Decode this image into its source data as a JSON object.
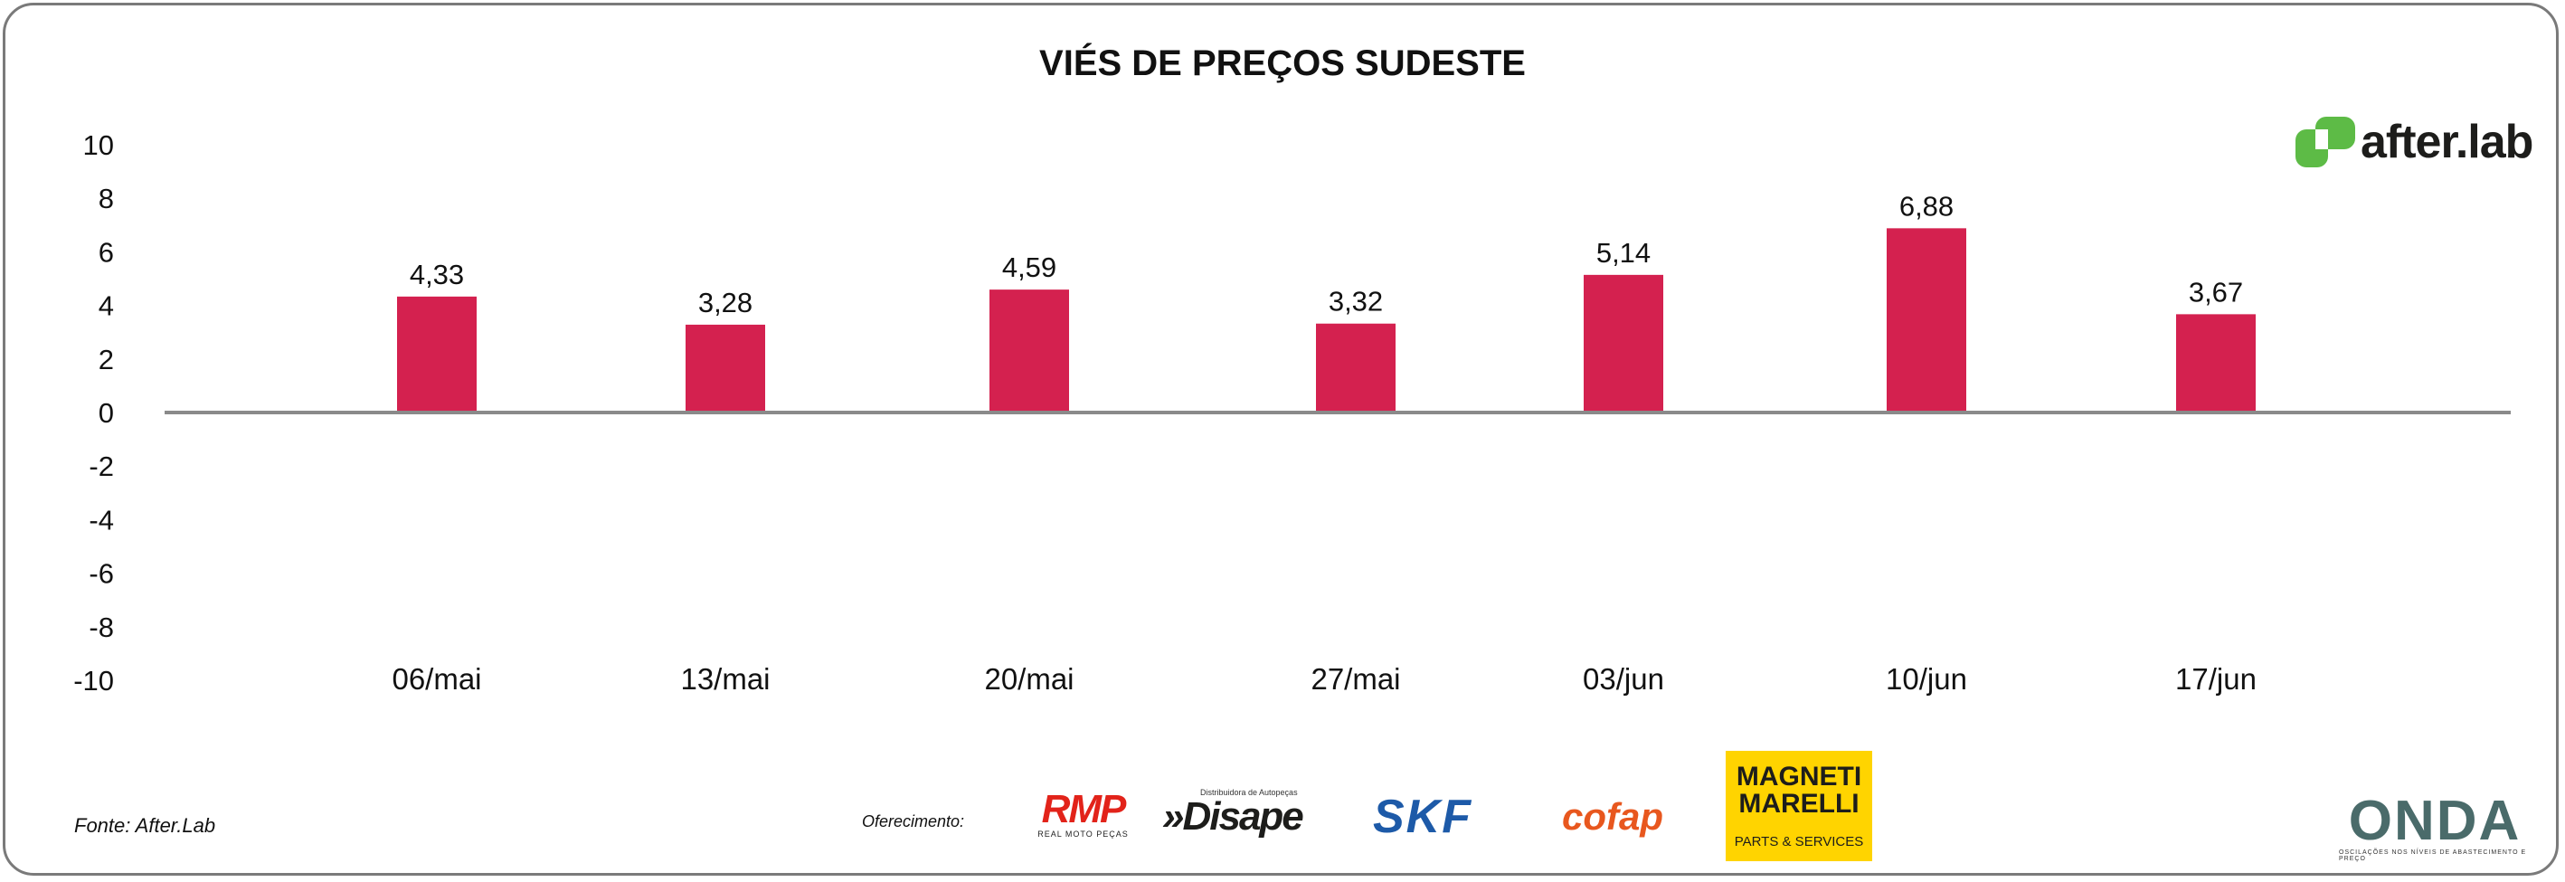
{
  "chart_data": {
    "type": "bar",
    "title": "VIÉS DE PREÇOS SUDESTE",
    "categories": [
      "06/mai",
      "13/mai",
      "20/mai",
      "27/mai",
      "03/jun",
      "10/jun",
      "17/jun"
    ],
    "values": [
      4.33,
      3.28,
      4.59,
      3.32,
      5.14,
      6.88,
      3.67
    ],
    "value_labels": [
      "4,33",
      "3,28",
      "4,59",
      "3,32",
      "5,14",
      "6,88",
      "3,67"
    ],
    "y_ticks": [
      "10",
      "8",
      "6",
      "4",
      "2",
      "0",
      "-2",
      "-4",
      "-6",
      "-8",
      "-10"
    ],
    "ylim": [
      -10,
      10
    ],
    "bar_color": "#d4214f",
    "grid": false,
    "legend": "none"
  },
  "footer": {
    "source": "Fonte: After.Lab",
    "offer": "Oferecimento:"
  },
  "logos": {
    "afterlab": "after.lab",
    "rmp": "RMP",
    "rmp_sub": "REAL MOTO PEÇAS",
    "disape_sub": "Distribuidora de Autopeças",
    "disape": "»Disape",
    "skf": "SKF",
    "cofap": "cofap",
    "magneti": "MAGNETI MARELLI",
    "magneti_sub": "PARTS & SERVICES",
    "onda": "ONDA",
    "onda_sub": "OSCILAÇÕES NOS NÍVEIS DE ABASTECIMENTO E PREÇO"
  },
  "colors": {
    "afterlab_green": "#5dbb46",
    "axis": "#8a8a8a"
  }
}
